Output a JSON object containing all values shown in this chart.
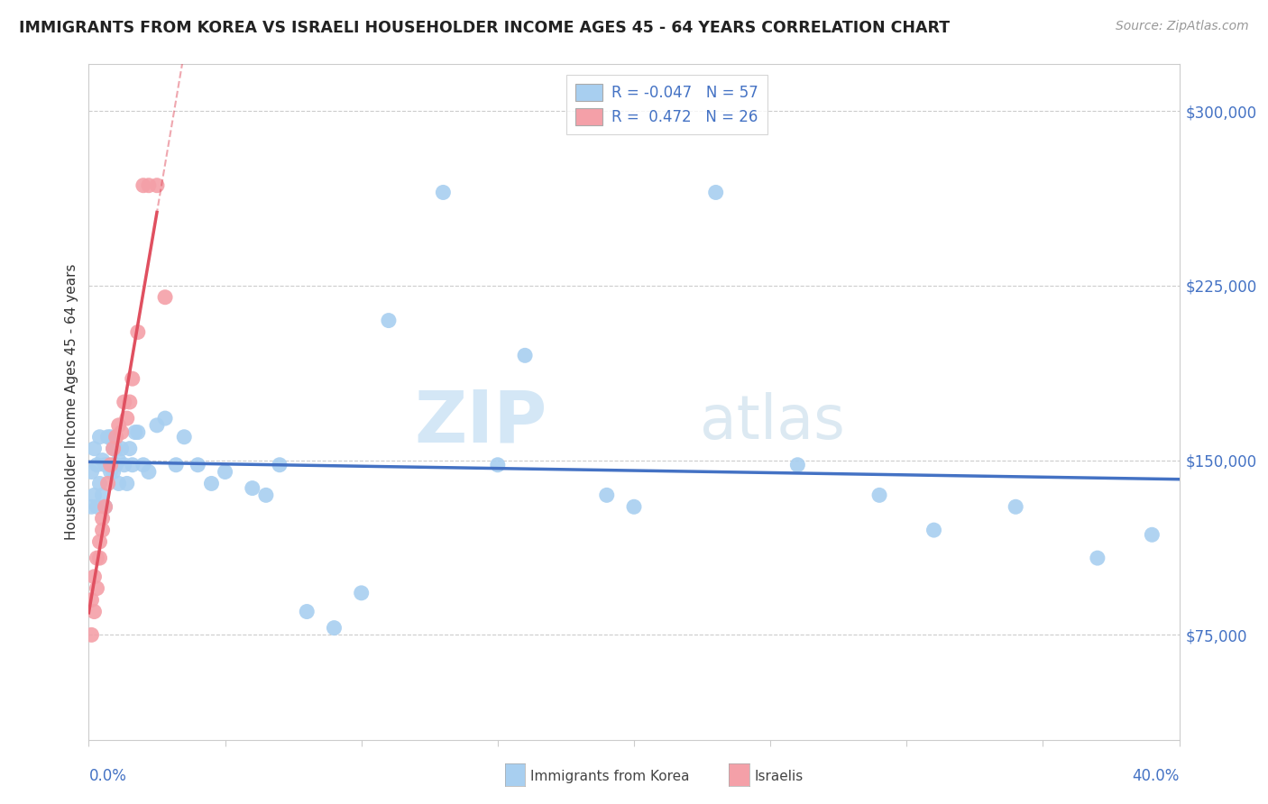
{
  "title": "IMMIGRANTS FROM KOREA VS ISRAELI HOUSEHOLDER INCOME AGES 45 - 64 YEARS CORRELATION CHART",
  "source": "Source: ZipAtlas.com",
  "ylabel": "Householder Income Ages 45 - 64 years",
  "legend_r_korea": "-0.047",
  "legend_n_korea": "57",
  "legend_r_israeli": "0.472",
  "legend_n_israeli": "26",
  "watermark_zip": "ZIP",
  "watermark_atlas": "atlas",
  "ytick_labels": [
    "$75,000",
    "$150,000",
    "$225,000",
    "$300,000"
  ],
  "ytick_values": [
    75000,
    150000,
    225000,
    300000
  ],
  "xlim": [
    0.0,
    0.4
  ],
  "ylim": [
    30000,
    320000
  ],
  "korea_color": "#A8CFF0",
  "israeli_color": "#F4A0A8",
  "korea_line_color": "#4472C4",
  "israeli_line_color": "#E05060",
  "grid_color": "#CCCCCC",
  "background_color": "#FFFFFF",
  "korea_x": [
    0.001,
    0.001,
    0.002,
    0.002,
    0.003,
    0.003,
    0.004,
    0.004,
    0.005,
    0.005,
    0.006,
    0.006,
    0.007,
    0.007,
    0.008,
    0.008,
    0.009,
    0.009,
    0.01,
    0.01,
    0.011,
    0.011,
    0.012,
    0.013,
    0.014,
    0.015,
    0.016,
    0.017,
    0.018,
    0.02,
    0.022,
    0.025,
    0.028,
    0.032,
    0.035,
    0.04,
    0.045,
    0.05,
    0.06,
    0.065,
    0.07,
    0.08,
    0.09,
    0.1,
    0.11,
    0.13,
    0.15,
    0.16,
    0.19,
    0.2,
    0.23,
    0.26,
    0.29,
    0.31,
    0.34,
    0.37,
    0.39
  ],
  "korea_y": [
    145000,
    130000,
    155000,
    135000,
    148000,
    130000,
    160000,
    140000,
    150000,
    135000,
    148000,
    130000,
    160000,
    148000,
    145000,
    160000,
    145000,
    155000,
    148000,
    155000,
    150000,
    140000,
    155000,
    148000,
    140000,
    155000,
    148000,
    162000,
    162000,
    148000,
    145000,
    165000,
    168000,
    148000,
    160000,
    148000,
    140000,
    145000,
    138000,
    135000,
    148000,
    85000,
    78000,
    93000,
    210000,
    265000,
    148000,
    195000,
    135000,
    130000,
    265000,
    148000,
    135000,
    120000,
    130000,
    108000,
    118000
  ],
  "israeli_x": [
    0.001,
    0.001,
    0.002,
    0.002,
    0.003,
    0.003,
    0.004,
    0.004,
    0.005,
    0.005,
    0.006,
    0.007,
    0.008,
    0.009,
    0.01,
    0.011,
    0.012,
    0.013,
    0.014,
    0.015,
    0.016,
    0.018,
    0.02,
    0.022,
    0.025,
    0.028
  ],
  "israeli_y": [
    75000,
    90000,
    100000,
    85000,
    108000,
    95000,
    115000,
    108000,
    125000,
    120000,
    130000,
    140000,
    148000,
    155000,
    160000,
    165000,
    162000,
    175000,
    168000,
    175000,
    185000,
    205000,
    268000,
    268000,
    268000,
    220000
  ]
}
